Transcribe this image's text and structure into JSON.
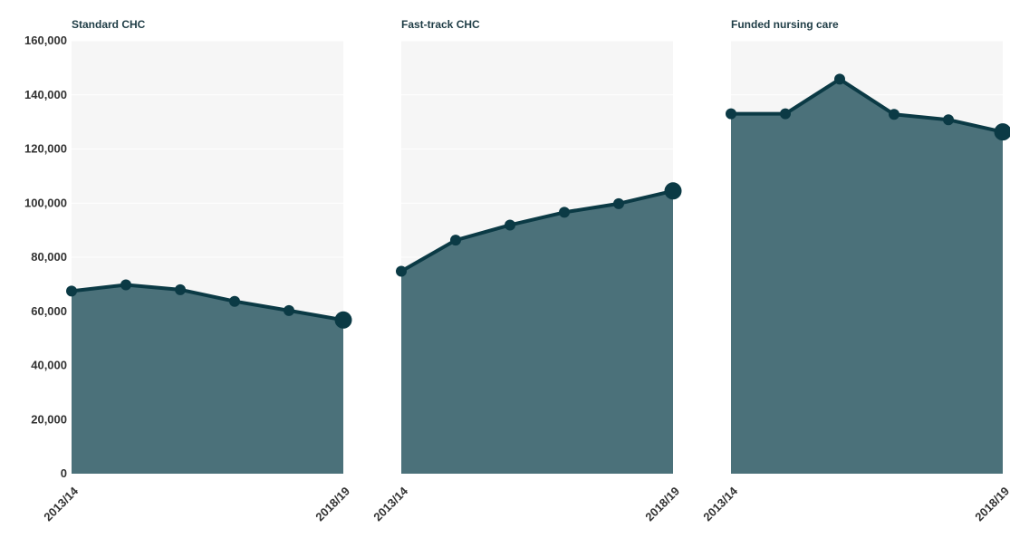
{
  "colors": {
    "panel_background": "#f6f6f6",
    "gridline": "#ffffff",
    "area_fill": "#4b717a",
    "line_and_markers": "#0b3a45",
    "text": "#333333",
    "title_text": "#1f3d46"
  },
  "chart_data": {
    "type": "area",
    "y_ticks": [
      "0",
      "20,000",
      "40,000",
      "60,000",
      "80,000",
      "100,000",
      "120,000",
      "140,000",
      "160,000"
    ],
    "ylim": [
      0,
      160000
    ],
    "y_tick_values": [
      0,
      20000,
      40000,
      60000,
      80000,
      100000,
      120000,
      140000,
      160000
    ],
    "x_labels_shown": [
      "2013/14",
      "2018/19"
    ],
    "grid": "horizontal",
    "legend": "none",
    "panels": [
      {
        "title": "Standard CHC",
        "x": [
          "2013/14",
          "2014/15",
          "2015/16",
          "2016/17",
          "2017/18",
          "2018/19"
        ],
        "values": [
          67500,
          69800,
          68000,
          63700,
          60300,
          56800
        ]
      },
      {
        "title": "Fast-track CHC",
        "x": [
          "2013/14",
          "2014/15",
          "2015/16",
          "2016/17",
          "2017/18",
          "2018/19"
        ],
        "values": [
          74800,
          86300,
          91900,
          96600,
          99800,
          104500
        ]
      },
      {
        "title": "Funded nursing care",
        "x": [
          "2013/14",
          "2014/15",
          "2015/16",
          "2016/17",
          "2017/18",
          "2018/19"
        ],
        "values": [
          133000,
          133000,
          145800,
          132800,
          130800,
          126300
        ]
      }
    ]
  }
}
